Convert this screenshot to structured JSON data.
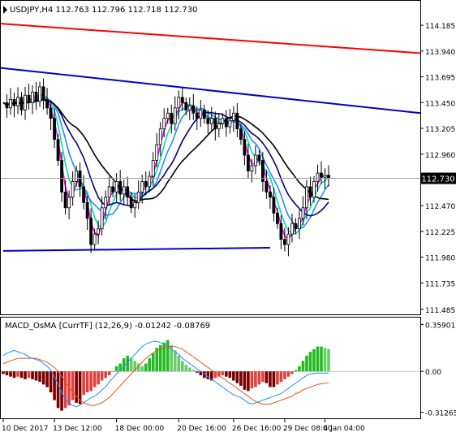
{
  "chart_data": [
    {
      "type": "candlestick",
      "title": "USDJPY,H4  112.763 112.796 112.718 112.730",
      "symbol": "USDJPY",
      "timeframe": "H4",
      "ohlc": {
        "open": 112.763,
        "high": 112.796,
        "low": 112.718,
        "close": 112.73
      },
      "price_ticks": [
        "114.185",
        "113.940",
        "113.695",
        "113.450",
        "113.205",
        "112.960",
        "112.715",
        "112.470",
        "112.225",
        "111.980",
        "111.735",
        "111.485"
      ],
      "current_price_label": "112.730",
      "ylim": [
        111.46,
        114.24
      ],
      "time_labels": [
        "10 Dec 2017",
        "13 Dec 12:00",
        "18 Dec 00:00",
        "20 Dec 16:00",
        "26 Dec 16:00",
        "29 Dec 08:00",
        "4 Jan 04:00"
      ],
      "closes": [
        113.45,
        113.4,
        113.48,
        113.42,
        113.5,
        113.38,
        113.52,
        113.45,
        113.55,
        113.46,
        113.6,
        113.48,
        113.4,
        113.3,
        113.1,
        112.9,
        112.6,
        112.45,
        112.55,
        112.7,
        112.8,
        112.65,
        112.5,
        112.35,
        112.1,
        112.2,
        112.25,
        112.45,
        112.55,
        112.65,
        112.6,
        112.7,
        112.58,
        112.65,
        112.55,
        112.45,
        112.5,
        112.6,
        112.7,
        112.65,
        112.75,
        112.9,
        113.05,
        113.2,
        113.3,
        113.35,
        113.25,
        113.4,
        113.5,
        113.45,
        113.38,
        113.42,
        113.35,
        113.3,
        113.38,
        113.3,
        113.25,
        113.3,
        113.2,
        113.25,
        113.3,
        113.22,
        113.28,
        113.35,
        113.2,
        113.1,
        112.95,
        112.8,
        112.85,
        112.95,
        112.9,
        112.7,
        112.6,
        112.55,
        112.4,
        112.3,
        112.15,
        112.1,
        112.2,
        112.3,
        112.25,
        112.35,
        112.45,
        112.65,
        112.55,
        112.7,
        112.78,
        112.74,
        112.76,
        112.73
      ],
      "ma_series": [
        {
          "color": "#ff00ff",
          "role": "fast-ma"
        },
        {
          "color": "#00e0a0",
          "role": "ma"
        },
        {
          "color": "#1e90ff",
          "role": "ma"
        },
        {
          "color": "#000080",
          "role": "ma"
        },
        {
          "color": "#000000",
          "role": "slow-ma"
        }
      ],
      "trendlines": [
        {
          "color": "#ff0000",
          "from": [
            0,
            114.2
          ],
          "to": [
            89,
            113.92
          ]
        },
        {
          "color": "#0000cd",
          "from": [
            0,
            113.78
          ],
          "to": [
            89,
            113.35
          ]
        },
        {
          "color": "#0000cd",
          "from": [
            0,
            112.04
          ],
          "to": [
            73,
            112.07
          ]
        }
      ],
      "colors": {
        "bull_candle": "#000000",
        "bear_candle": "#000000",
        "grid": "#c0c0c0"
      }
    },
    {
      "type": "histogram",
      "title": "MACD_OsMA [CurrTF] (12,26,9) -0.01242 -0.08769",
      "indicator": "MACD_OsMA",
      "params": "(12,26,9)",
      "values_printed": [
        -0.01242,
        -0.08769
      ],
      "ticks": [
        "0.35901",
        "0.00",
        "-0.31265"
      ],
      "ylim": [
        -0.34,
        0.38
      ],
      "histogram": [
        -0.02,
        -0.03,
        -0.04,
        -0.05,
        -0.04,
        -0.05,
        -0.06,
        -0.05,
        -0.06,
        -0.07,
        -0.08,
        -0.1,
        -0.12,
        -0.16,
        -0.22,
        -0.28,
        -0.3,
        -0.28,
        -0.26,
        -0.22,
        -0.24,
        -0.25,
        -0.18,
        -0.16,
        -0.15,
        -0.12,
        -0.1,
        -0.07,
        -0.05,
        -0.03,
        0.0,
        0.04,
        0.06,
        0.1,
        0.12,
        0.1,
        0.08,
        0.06,
        0.04,
        0.06,
        0.1,
        0.14,
        0.18,
        0.2,
        0.22,
        0.24,
        0.2,
        0.16,
        0.12,
        0.08,
        0.05,
        0.03,
        0.01,
        -0.01,
        -0.03,
        -0.05,
        -0.06,
        -0.07,
        -0.05,
        -0.04,
        -0.03,
        -0.04,
        -0.05,
        -0.07,
        -0.09,
        -0.11,
        -0.14,
        -0.15,
        -0.13,
        -0.12,
        -0.1,
        -0.08,
        -0.09,
        -0.12,
        -0.12,
        -0.1,
        -0.08,
        -0.06,
        -0.04,
        -0.02,
        0.01,
        0.04,
        0.08,
        0.12,
        0.15,
        0.17,
        0.19,
        0.19,
        0.18,
        0.17
      ],
      "macd_line": [
        0.12,
        0.14,
        0.15,
        0.16,
        0.15,
        0.14,
        0.13,
        0.11,
        0.1,
        0.09,
        0.08,
        0.06,
        0.04,
        0.01,
        -0.04,
        -0.1,
        -0.16,
        -0.21,
        -0.24,
        -0.26,
        -0.27,
        -0.26,
        -0.24,
        -0.22,
        -0.2,
        -0.19,
        -0.17,
        -0.14,
        -0.12,
        -0.08,
        -0.05,
        -0.02,
        0.01,
        0.04,
        0.07,
        0.1,
        0.13,
        0.16,
        0.19,
        0.21,
        0.22,
        0.23,
        0.23,
        0.22,
        0.21,
        0.19,
        0.17,
        0.15,
        0.13,
        0.1,
        0.08,
        0.06,
        0.04,
        0.02,
        0.0,
        -0.02,
        -0.04,
        -0.06,
        -0.08,
        -0.1,
        -0.12,
        -0.14,
        -0.16,
        -0.18,
        -0.19,
        -0.2,
        -0.22,
        -0.24,
        -0.25,
        -0.24,
        -0.23,
        -0.22,
        -0.21,
        -0.2,
        -0.19,
        -0.18,
        -0.17,
        -0.15,
        -0.13,
        -0.11,
        -0.09,
        -0.07,
        -0.05,
        -0.03,
        -0.02,
        -0.015,
        -0.013,
        -0.012,
        -0.0124,
        -0.01242
      ],
      "signal_line": [
        0.06,
        0.07,
        0.08,
        0.09,
        0.1,
        0.1,
        0.1,
        0.1,
        0.1,
        0.1,
        0.09,
        0.08,
        0.07,
        0.05,
        0.03,
        0.0,
        -0.04,
        -0.08,
        -0.12,
        -0.16,
        -0.19,
        -0.22,
        -0.24,
        -0.25,
        -0.26,
        -0.26,
        -0.25,
        -0.24,
        -0.22,
        -0.2,
        -0.17,
        -0.14,
        -0.11,
        -0.08,
        -0.05,
        -0.02,
        0.01,
        0.04,
        0.07,
        0.1,
        0.12,
        0.14,
        0.16,
        0.17,
        0.18,
        0.19,
        0.19,
        0.19,
        0.18,
        0.17,
        0.15,
        0.13,
        0.11,
        0.09,
        0.07,
        0.05,
        0.03,
        0.01,
        -0.01,
        -0.03,
        -0.05,
        -0.07,
        -0.09,
        -0.11,
        -0.13,
        -0.15,
        -0.17,
        -0.19,
        -0.21,
        -0.23,
        -0.24,
        -0.25,
        -0.25,
        -0.25,
        -0.24,
        -0.23,
        -0.22,
        -0.21,
        -0.2,
        -0.19,
        -0.17,
        -0.16,
        -0.14,
        -0.13,
        -0.12,
        -0.11,
        -0.1,
        -0.095,
        -0.09,
        -0.08769
      ],
      "colors": {
        "positive": "#22bb22",
        "negative": "#cc0000",
        "macd_line": "#1e90ff",
        "signal_line": "#e05a1a"
      }
    }
  ]
}
